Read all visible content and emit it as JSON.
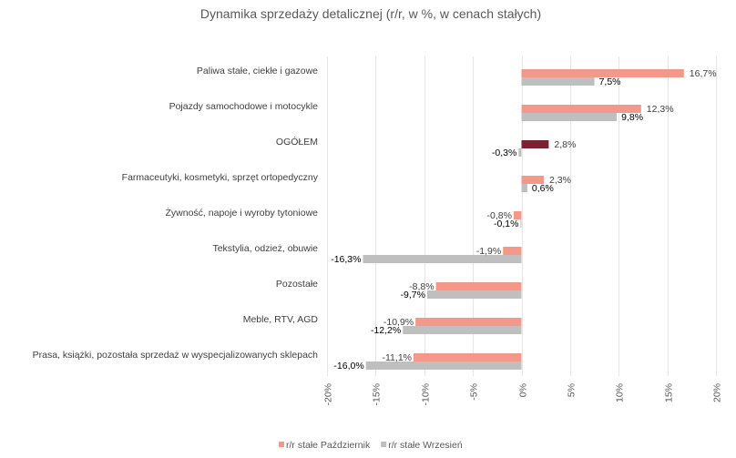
{
  "chart_data": {
    "type": "bar",
    "orientation": "horizontal",
    "title": "Dynamika sprzedaży detalicznej (r/r, w %, w cenach stałych)",
    "categories": [
      "Paliwa stałe, ciekłe i gazowe",
      "Pojazdy samochodowe i motocykle",
      "OGÓŁEM",
      "Farmaceutyki, kosmetyki, sprzęt ortopedyczny",
      "Żywność, napoje i wyroby tytoniowe",
      "Tekstylia, odzież, obuwie",
      "Pozostałe",
      "Meble, RTV, AGD",
      "Prasa, książki, pozostała sprzedaż w wyspecjalizowanych sklepach"
    ],
    "series": [
      {
        "name": "r/r stałe Październik",
        "color": "#f4998a",
        "highlight_color": "#7b2230",
        "values": [
          16.7,
          12.3,
          2.8,
          2.3,
          -0.8,
          -1.9,
          -8.8,
          -10.9,
          -11.1
        ],
        "labels": [
          "16,7%",
          "12,3%",
          "2,8%",
          "2,3%",
          "-0,8%",
          "-1,9%",
          "-8,8%",
          "-10,9%",
          "-11,1%"
        ]
      },
      {
        "name": "r/r stałe Wrzesień",
        "color": "#bfbfbf",
        "values": [
          7.5,
          9.8,
          -0.3,
          0.6,
          -0.1,
          -16.3,
          -9.7,
          -12.2,
          -16.0
        ],
        "labels": [
          "7,5%",
          "9,8%",
          "-0,3%",
          "0,6%",
          "-0,1%",
          "-16,3%",
          "-9,7%",
          "-12,2%",
          "-16,0%"
        ]
      }
    ],
    "highlight_category": "OGÓŁEM",
    "xlim": [
      -20,
      20
    ],
    "xticks": [
      -20,
      -15,
      -10,
      -5,
      0,
      5,
      10,
      15,
      20
    ],
    "xtick_labels": [
      "-20%",
      "-15%",
      "-10%",
      "-5%",
      "0%",
      "5%",
      "10%",
      "15%",
      "20%"
    ],
    "grid": true,
    "legend": "bottom"
  }
}
